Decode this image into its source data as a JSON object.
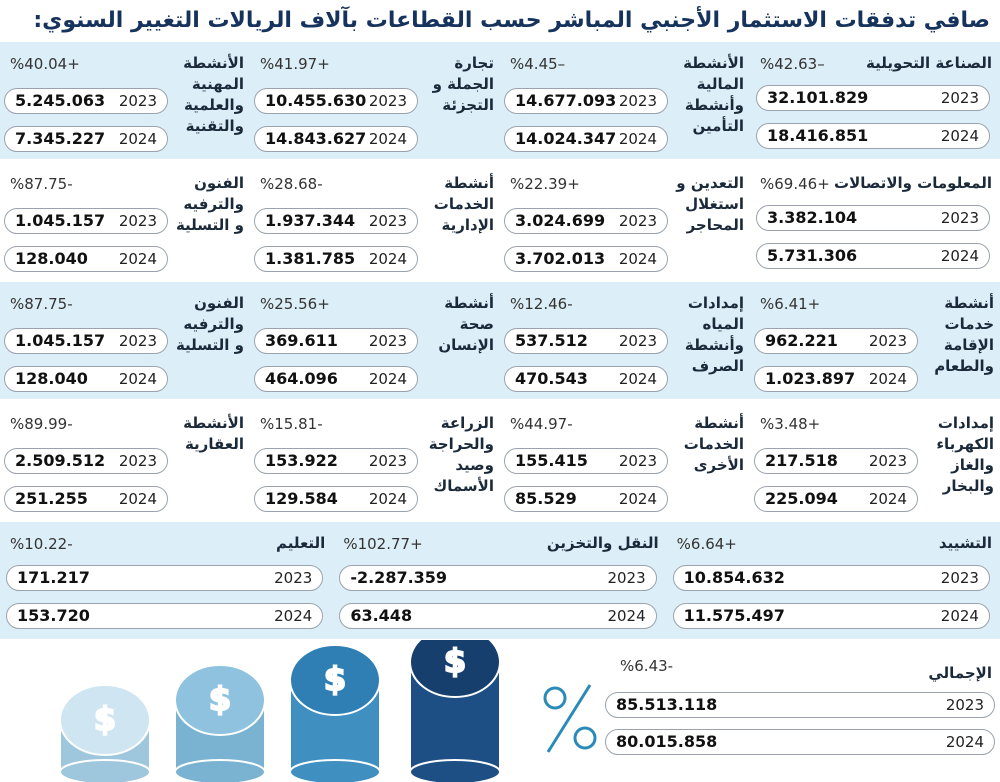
{
  "title": "صافي تدفقات الاستثمار الأجنبي المباشر حسب القطاعات بآلاف الريالات التغيير السنوي:",
  "years": [
    "2023",
    "2024"
  ],
  "rows": [
    [
      {
        "name": "الصناعة التحويلية",
        "change": "%42.63–",
        "v2023": "32.101.829",
        "v2024": "18.416.851"
      },
      {
        "name": "الأنشطة المالية وأنشطة التأمين",
        "change": "%4.45–",
        "v2023": "14.677.093",
        "v2024": "14.024.347"
      },
      {
        "name": "تجارة الجملة و التجزئة",
        "change": "%41.97+",
        "v2023": "10.455.630",
        "v2024": "14.843.627"
      },
      {
        "name": "الأنشطة المهنية والعلمية والتقنية",
        "change": "%40.04+",
        "v2023": "5.245.063",
        "v2024": "7.345.227"
      }
    ],
    [
      {
        "name": "المعلومات والاتصالات",
        "change": "%69.46+",
        "v2023": "3.382.104",
        "v2024": "5.731.306"
      },
      {
        "name": "التعدين و استغلال المحاجر",
        "change": "%22.39+",
        "v2023": "3.024.699",
        "v2024": "3.702.013"
      },
      {
        "name": "أنشطة الخدمات الإدارية",
        "change": "%28.68-",
        "v2023": "1.937.344",
        "v2024": "1.381.785"
      },
      {
        "name": "الفنون والترفيه و التسلية",
        "change": "%87.75-",
        "v2023": "1.045.157",
        "v2024": "128.040"
      }
    ],
    [
      {
        "name": "أنشطة خدمات الإقامة والطعام",
        "change": "%6.41+",
        "v2023": "962.221",
        "v2024": "1.023.897"
      },
      {
        "name": "إمدادات المياه وأنشطة الصرف",
        "change": "%12.46-",
        "v2023": "537.512",
        "v2024": "470.543"
      },
      {
        "name": "أنشطة صحة الإنسان",
        "change": "%25.56+",
        "v2023": "369.611",
        "v2024": "464.096"
      },
      {
        "name": "الفنون والترفيه و التسلية",
        "change": "%87.75-",
        "v2023": "1.045.157",
        "v2024": "128.040"
      }
    ],
    [
      {
        "name": "إمدادات الكهرباء والغاز والبخار",
        "change": "%3.48+",
        "v2023": "217.518",
        "v2024": "225.094"
      },
      {
        "name": "أنشطة الخدمات الأخرى",
        "change": "%44.97-",
        "v2023": "155.415",
        "v2024": "85.529"
      },
      {
        "name": "الزراعة والحراجة وصيد الأسماك",
        "change": "%15.81-",
        "v2023": "153.922",
        "v2024": "129.584"
      },
      {
        "name": "الأنشطة العقارية",
        "change": "%89.99-",
        "v2023": "2.509.512",
        "v2024": "251.255"
      }
    ],
    [
      {
        "name": "التشييد",
        "change": "%6.64+",
        "v2023": "10.854.632",
        "v2024": "11.575.497"
      },
      {
        "name": "النقل والتخزين",
        "change": "%102.77+",
        "v2023": "-2.287.359",
        "v2024": "63.448"
      },
      {
        "name": "التعليم",
        "change": "%10.22-",
        "v2023": "171.217",
        "v2024": "153.720"
      }
    ]
  ],
  "total": {
    "name": "الإجمالي",
    "change": "%6.43-",
    "v2023": "85.513.118",
    "v2024": "80.015.858"
  }
}
